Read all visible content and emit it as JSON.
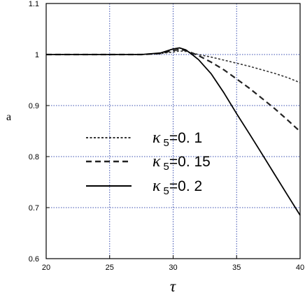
{
  "chart_data": {
    "type": "line",
    "title": "",
    "xlabel": "τ",
    "ylabel": "a",
    "xlim": [
      20,
      40
    ],
    "ylim": [
      0.6,
      1.1
    ],
    "x_ticks": [
      "20",
      "25",
      "30",
      "35",
      "40"
    ],
    "y_ticks": [
      "0.6",
      "0.7",
      "0.8",
      "0.9",
      "1",
      "1.1"
    ],
    "grid": true,
    "legend_position": "center-left",
    "series": [
      {
        "name": "κ 5=0. 1",
        "legend": {
          "symbol": "κ",
          "sub": "5",
          "value": "=0. 1"
        },
        "style": "dotted",
        "color": "#333333",
        "x": [
          20,
          27.5,
          29,
          30,
          30.5,
          31,
          31.5,
          32,
          33,
          34,
          35,
          36,
          37,
          38,
          39,
          40
        ],
        "y": [
          1.0,
          1.0,
          1.002,
          1.005,
          1.007,
          1.006,
          1.003,
          1.0,
          0.995,
          0.989,
          0.983,
          0.977,
          0.97,
          0.963,
          0.955,
          0.945
        ]
      },
      {
        "name": "κ 5=0. 15",
        "legend": {
          "symbol": "κ",
          "sub": "5",
          "value": "=0. 15"
        },
        "style": "dashed",
        "color": "#222222",
        "x": [
          20,
          27.5,
          29,
          30,
          30.5,
          31,
          31.5,
          32,
          33,
          34,
          35,
          36,
          37,
          38,
          39,
          40
        ],
        "y": [
          1.0,
          1.0,
          1.002,
          1.008,
          1.01,
          1.008,
          1.003,
          0.998,
          0.985,
          0.97,
          0.952,
          0.934,
          0.914,
          0.894,
          0.872,
          0.849
        ]
      },
      {
        "name": "κ 5=0. 2",
        "legend": {
          "symbol": "κ",
          "sub": "5",
          "value": "=0. 2"
        },
        "style": "solid",
        "color": "#000000",
        "x": [
          20,
          27.5,
          29,
          30,
          30.5,
          31,
          31.5,
          32,
          33,
          34,
          35,
          36,
          37,
          38,
          39,
          40
        ],
        "y": [
          1.0,
          1.0,
          1.003,
          1.011,
          1.013,
          1.009,
          1.0,
          0.99,
          0.962,
          0.925,
          0.884,
          0.845,
          0.805,
          0.765,
          0.725,
          0.685
        ]
      }
    ]
  }
}
